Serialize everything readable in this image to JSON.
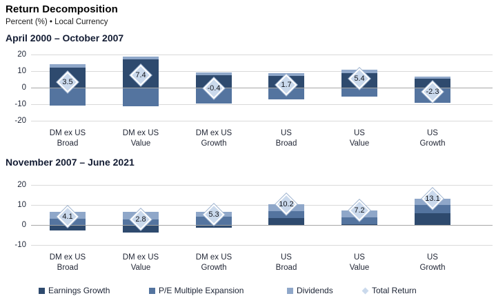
{
  "header": {
    "title": "Return Decomposition",
    "subtitle": "Percent (%) • Local Currency"
  },
  "legend": [
    {
      "label": "Earnings Growth",
      "shape": "square",
      "color": "#2e4a6e"
    },
    {
      "label": "P/E Multiple Expansion",
      "shape": "square",
      "color": "#54749f"
    },
    {
      "label": "Dividends",
      "shape": "square",
      "color": "#8fa7c9"
    },
    {
      "label": "Total Return",
      "shape": "diamond",
      "color": "#cad9ec"
    }
  ],
  "chart_data": [
    {
      "type": "bar",
      "stacked": true,
      "title": "April 2000 – October 2007",
      "categories": [
        "DM ex US\nBroad",
        "DM ex US\nValue",
        "DM ex US\nGrowth",
        "US\nBroad",
        "US\nValue",
        "US\nGrowth"
      ],
      "series": [
        {
          "name": "Earnings Growth",
          "values": [
            12.2,
            17.0,
            7.4,
            7.0,
            8.6,
            5.7
          ]
        },
        {
          "name": "P/E Multiple Expansion",
          "values": [
            -10.8,
            -11.2,
            -9.4,
            -7.0,
            -5.4,
            -9.1
          ]
        },
        {
          "name": "Dividends",
          "values": [
            2.1,
            1.6,
            1.6,
            1.7,
            2.2,
            1.1
          ]
        }
      ],
      "totals": [
        3.5,
        7.4,
        -0.4,
        1.7,
        5.4,
        -2.3
      ],
      "total_labels": [
        "3.5",
        "7.4",
        "-0.4",
        "1.7",
        "5.4",
        "-2.3"
      ],
      "ylim": [
        -20,
        20
      ],
      "yticks": [
        20,
        10,
        0,
        -10,
        -20
      ],
      "grid": true,
      "legend_position": "bottom"
    },
    {
      "type": "bar",
      "stacked": true,
      "title": "November 2007 – June 2021",
      "categories": [
        "DM ex US\nBroad",
        "DM ex US\nValue",
        "DM ex US\nGrowth",
        "US\nBroad",
        "US\nValue",
        "US\nGrowth"
      ],
      "series": [
        {
          "name": "Earnings Growth",
          "values": [
            -2.6,
            -3.9,
            -1.3,
            3.4,
            0.4,
            6.0
          ]
        },
        {
          "name": "P/E Multiple Expansion",
          "values": [
            3.3,
            2.9,
            4.1,
            3.5,
            3.5,
            4.0
          ]
        },
        {
          "name": "Dividends",
          "values": [
            3.4,
            3.8,
            2.5,
            3.3,
            3.3,
            3.1
          ]
        }
      ],
      "totals": [
        4.1,
        2.8,
        5.3,
        10.2,
        7.2,
        13.1
      ],
      "total_labels": [
        "4.1",
        "2.8",
        "5.3",
        "10.2",
        "7.2",
        "13.1"
      ],
      "ylim": [
        -10,
        20
      ],
      "yticks": [
        20,
        10,
        0,
        -10
      ],
      "grid": true,
      "legend_position": "bottom"
    }
  ]
}
